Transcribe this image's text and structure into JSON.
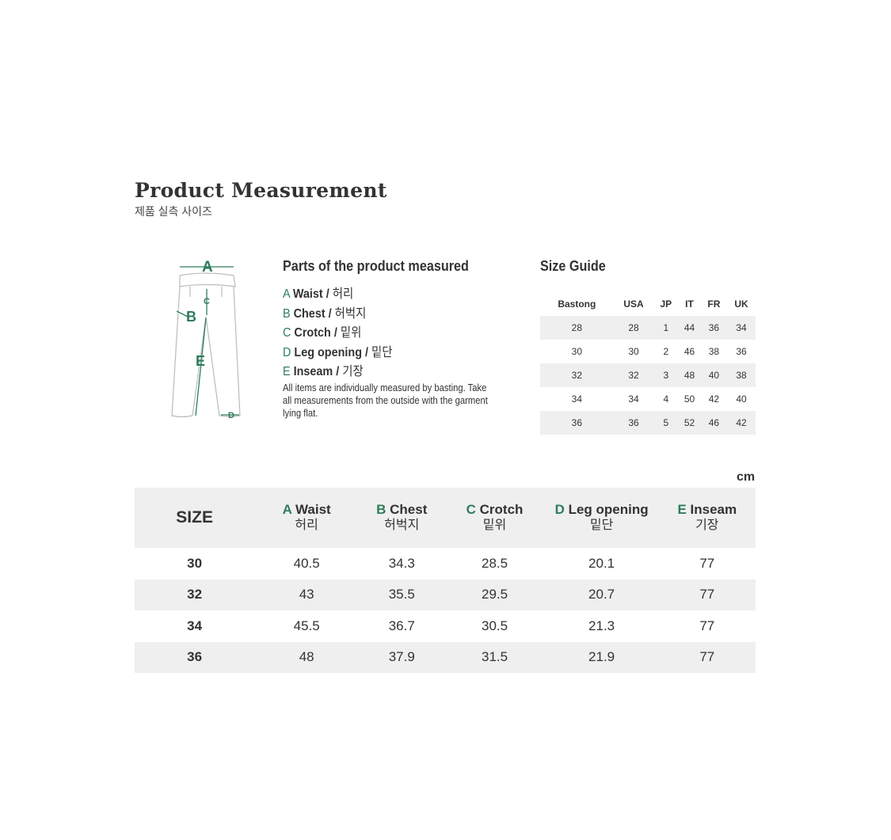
{
  "title": "Product Measurement",
  "subtitle": "제품 실측 사이즈",
  "diagram": {
    "labels": [
      "A",
      "B",
      "C",
      "D",
      "E"
    ]
  },
  "parts": {
    "heading": "Parts of the product measured",
    "items": [
      {
        "letter": "A",
        "en": "Waist",
        "kr": "허리"
      },
      {
        "letter": "B",
        "en": "Chest",
        "kr": "허벅지"
      },
      {
        "letter": "C",
        "en": "Crotch",
        "kr": "밑위"
      },
      {
        "letter": "D",
        "en": "Leg opening",
        "kr": "밑단"
      },
      {
        "letter": "E",
        "en": "Inseam",
        "kr": "기장"
      }
    ],
    "note": "All items are individually measured by basting. Take all measurements from the outside with the garment lying flat."
  },
  "size_guide": {
    "heading": "Size Guide",
    "columns": [
      "Bastong",
      "USA",
      "JP",
      "IT",
      "FR",
      "UK"
    ],
    "rows": [
      [
        "28",
        "28",
        "1",
        "44",
        "36",
        "34"
      ],
      [
        "30",
        "30",
        "2",
        "46",
        "38",
        "36"
      ],
      [
        "32",
        "32",
        "3",
        "48",
        "40",
        "38"
      ],
      [
        "34",
        "34",
        "4",
        "50",
        "42",
        "40"
      ],
      [
        "36",
        "36",
        "5",
        "52",
        "46",
        "42"
      ]
    ]
  },
  "unit": "cm",
  "measurements": {
    "size_label": "SIZE",
    "rows": [
      [
        "30",
        "40.5",
        "34.3",
        "28.5",
        "20.1",
        "77"
      ],
      [
        "32",
        "43",
        "35.5",
        "29.5",
        "20.7",
        "77"
      ],
      [
        "34",
        "45.5",
        "36.7",
        "30.5",
        "21.3",
        "77"
      ],
      [
        "36",
        "48",
        "37.9",
        "31.5",
        "21.9",
        "77"
      ]
    ]
  },
  "colors": {
    "accent": "#2e7d5b",
    "row_alt": "#efefef"
  }
}
